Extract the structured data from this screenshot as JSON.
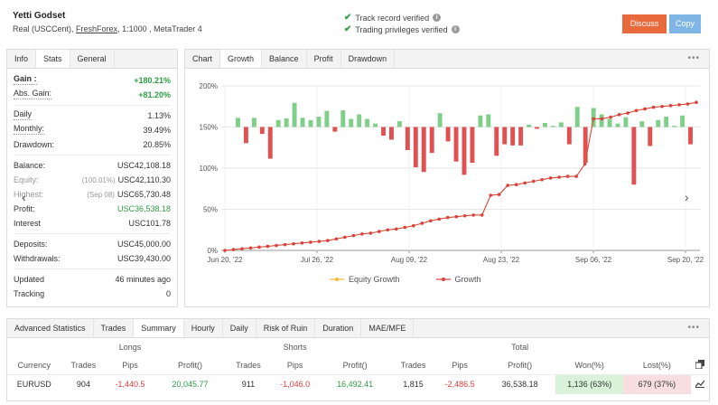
{
  "account": {
    "name": "Yetti Godset",
    "type": "Real (USCCent),",
    "broker": "FreshForex",
    "leverage_platform": ", 1:1000 , MetaTrader 4"
  },
  "verify": [
    {
      "label": "Track record verified",
      "icon": "check-icon"
    },
    {
      "label": "Trading privileges verified",
      "icon": "check-icon"
    }
  ],
  "buttons": {
    "discuss": "Discuss",
    "copy": "Copy"
  },
  "left_tabs": [
    "Info",
    "Stats",
    "General"
  ],
  "stats": {
    "gain": {
      "label": "Gain :",
      "value": "+180.21%"
    },
    "abs_gain": {
      "label": "Abs. Gain:",
      "value": "+81.20%"
    },
    "daily": {
      "label": "Daily",
      "value": "1.13%"
    },
    "monthly": {
      "label": "Monthly:",
      "value": "39.49%"
    },
    "drawdown": {
      "label": "Drawdown:",
      "value": "20.85%"
    },
    "balance": {
      "label": "Balance:",
      "value": "USC42,108.18"
    },
    "equity": {
      "label": "Equity:",
      "pct": "(100.01%)",
      "value": "USC42,110.30"
    },
    "highest": {
      "label": "Highest:",
      "date": "(Sep 08)",
      "value": "USC65,730.48"
    },
    "profit": {
      "label": "Profit:",
      "value": "USC36,538.18"
    },
    "interest": {
      "label": "Interest",
      "value": "USC101.78"
    },
    "deposits": {
      "label": "Deposits:",
      "value": "USC45,000.00"
    },
    "withdrawals": {
      "label": "Withdrawals:",
      "value": "USC39,430.00"
    },
    "updated": {
      "label": "Updated",
      "value": "46 minutes ago"
    },
    "tracking": {
      "label": "Tracking",
      "value": "0"
    }
  },
  "chart_tabs": [
    "Chart",
    "Growth",
    "Balance",
    "Profit",
    "Drawdown"
  ],
  "bottom_tabs": [
    "Advanced Statistics",
    "Trades",
    "Summary",
    "Hourly",
    "Daily",
    "Risk of Ruin",
    "Duration",
    "MAE/MFE"
  ],
  "summary": {
    "groups": {
      "longs": "Longs",
      "shorts": "Shorts",
      "total": "Total"
    },
    "columns": [
      "Currency",
      "Trades",
      "Pips",
      "Profit()",
      "Trades",
      "Pips",
      "Profit()",
      "Trades",
      "Pips",
      "Profit()",
      "Won(%)",
      "Lost(%)"
    ],
    "row": {
      "currency": "EURUSD",
      "long_trades": "904",
      "long_pips": "-1,440.5",
      "long_profit": "20,045.77",
      "short_trades": "911",
      "short_pips": "-1,046.0",
      "short_profit": "16,492.41",
      "total_trades": "1,815",
      "total_pips": "-2,486.5",
      "total_profit": "36,538.18",
      "won": "1,136 (63%)",
      "lost": "679 (37%)"
    }
  },
  "chart_data": {
    "type": "line",
    "title": "",
    "x_ticks": [
      "Jun 20, '22",
      "Jul 26, '22",
      "Aug 09, '22",
      "Aug 23, '22",
      "Sep 06, '22",
      "Sep 20, '22"
    ],
    "y_ticks": [
      "0%",
      "50%",
      "100%",
      "150%",
      "200%"
    ],
    "ylim": [
      0,
      200
    ],
    "legend": [
      "Equity Growth",
      "Growth"
    ],
    "colors": {
      "equity": "#f0b93a",
      "growth": "#d9413c",
      "bar_up": "#7fcf8a",
      "bar_down": "#e05252"
    },
    "growth": [
      0,
      1,
      2,
      3,
      4,
      5,
      6,
      7,
      8,
      9,
      10,
      11,
      12,
      14,
      16,
      18,
      20,
      21,
      23,
      25,
      26,
      28,
      30,
      33,
      36,
      38,
      40,
      41,
      42,
      43,
      43,
      67,
      68,
      79,
      80,
      82,
      84,
      86,
      88,
      89,
      90,
      90,
      105,
      160,
      160,
      162,
      165,
      167,
      170,
      172,
      174,
      175,
      176,
      177,
      178,
      180
    ],
    "equity": [
      0,
      1,
      2,
      3,
      4,
      5,
      6,
      7,
      8,
      9,
      10,
      11,
      12,
      14,
      16,
      18,
      20,
      21,
      23,
      25,
      26,
      28,
      30,
      33,
      36,
      38,
      40,
      41,
      42,
      43,
      43,
      67,
      68,
      79,
      80,
      82,
      84,
      86,
      88,
      89,
      90,
      90,
      105,
      160,
      160,
      162,
      165,
      167,
      170,
      172,
      174,
      175,
      176,
      177,
      178,
      180
    ],
    "bars": [
      16,
      -28,
      16,
      -12,
      -55,
      12,
      15,
      42,
      16,
      12,
      18,
      28,
      -8,
      29,
      14,
      22,
      14,
      6,
      -15,
      -22,
      10,
      -40,
      -70,
      -78,
      -45,
      24,
      -25,
      -60,
      -83,
      -62,
      20,
      22,
      -50,
      -30,
      -32,
      -32,
      4,
      -3,
      7,
      2,
      8,
      -30,
      35,
      -62,
      33,
      22,
      14,
      6,
      17,
      -100,
      10,
      -33,
      12,
      18,
      2,
      20,
      -30
    ]
  }
}
